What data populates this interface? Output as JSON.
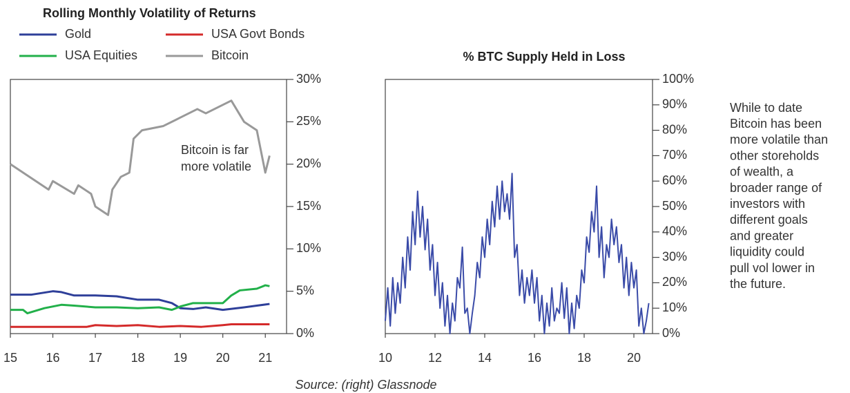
{
  "chart_data": [
    {
      "type": "line",
      "title": "Rolling Monthly Volatility of Returns",
      "annotation": [
        "Bitcoin is far",
        "more volatile"
      ],
      "xlim": [
        15,
        21.5
      ],
      "xticks": [
        15,
        16,
        17,
        18,
        19,
        20,
        21
      ],
      "ylim": [
        0,
        30
      ],
      "yticks": [
        {
          "value": 0,
          "label": "0%"
        },
        {
          "value": 5,
          "label": "5%"
        },
        {
          "value": 10,
          "label": "10%"
        },
        {
          "value": 15,
          "label": "15%"
        },
        {
          "value": 20,
          "label": "20%"
        },
        {
          "value": 25,
          "label": "25%"
        },
        {
          "value": 30,
          "label": "30%"
        }
      ],
      "series": [
        {
          "name": "Gold",
          "color": "#2e3f99",
          "x": [
            15,
            15.5,
            16,
            16.2,
            16.5,
            17,
            17.5,
            18,
            18.5,
            18.8,
            19,
            19.3,
            19.6,
            20,
            20.5,
            20.8,
            21.1
          ],
          "values": [
            4.6,
            4.6,
            5.0,
            4.9,
            4.5,
            4.5,
            4.4,
            4.0,
            4.0,
            3.6,
            3.0,
            2.9,
            3.1,
            2.8,
            3.1,
            3.3,
            3.5
          ]
        },
        {
          "name": "USA Govt Bonds",
          "color": "#d42a2a",
          "x": [
            15,
            16,
            16.8,
            17,
            17.5,
            18,
            18.5,
            19,
            19.5,
            20,
            20.2,
            21.1
          ],
          "values": [
            0.8,
            0.8,
            0.8,
            1.0,
            0.9,
            1.0,
            0.8,
            0.9,
            0.8,
            1.0,
            1.1,
            1.1
          ]
        },
        {
          "name": "USA Equities",
          "color": "#22b04a",
          "x": [
            15,
            15.3,
            15.4,
            15.8,
            16.2,
            16.5,
            17,
            17.5,
            18,
            18.5,
            18.8,
            19,
            19.3,
            19.6,
            20,
            20.2,
            20.4,
            20.8,
            21,
            21.1
          ],
          "values": [
            2.8,
            2.8,
            2.4,
            3.0,
            3.4,
            3.3,
            3.1,
            3.1,
            3.0,
            3.1,
            2.8,
            3.2,
            3.6,
            3.6,
            3.6,
            4.5,
            5.1,
            5.3,
            5.7,
            5.6
          ]
        },
        {
          "name": "Bitcoin",
          "color": "#999999",
          "x": [
            15,
            15.9,
            16.0,
            16.5,
            16.6,
            16.9,
            17.0,
            17.3,
            17.4,
            17.6,
            17.8,
            17.9,
            18.1,
            18.6,
            19.0,
            19.4,
            19.6,
            20.0,
            20.2,
            20.5,
            20.8,
            21.0,
            21.1
          ],
          "values": [
            20,
            17,
            18,
            16.5,
            17.5,
            16.5,
            15,
            14,
            17,
            18.5,
            19,
            23,
            24,
            24.5,
            25.5,
            26.5,
            26,
            27,
            27.5,
            25,
            24,
            19,
            21
          ]
        }
      ]
    },
    {
      "type": "line",
      "title": "% BTC Supply Held in Loss",
      "xlim": [
        10,
        20.75
      ],
      "xticks": [
        10,
        12,
        14,
        16,
        18,
        20
      ],
      "ylim": [
        0,
        100
      ],
      "yticks": [
        {
          "value": 0,
          "label": "0%"
        },
        {
          "value": 10,
          "label": "10%"
        },
        {
          "value": 20,
          "label": "20%"
        },
        {
          "value": 30,
          "label": "30%"
        },
        {
          "value": 40,
          "label": "40%"
        },
        {
          "value": 50,
          "label": "50%"
        },
        {
          "value": 60,
          "label": "60%"
        },
        {
          "value": 70,
          "label": "70%"
        },
        {
          "value": 80,
          "label": "80%"
        },
        {
          "value": 90,
          "label": "90%"
        },
        {
          "value": 100,
          "label": "100%"
        }
      ],
      "series": [
        {
          "color": "#3a4ba8",
          "x": [
            10.0,
            10.1,
            10.2,
            10.3,
            10.4,
            10.5,
            10.6,
            10.7,
            10.8,
            10.9,
            11.0,
            11.1,
            11.2,
            11.3,
            11.4,
            11.5,
            11.6,
            11.7,
            11.8,
            11.9,
            12.0,
            12.1,
            12.2,
            12.3,
            12.4,
            12.5,
            12.6,
            12.7,
            12.8,
            12.9,
            13.0,
            13.1,
            13.2,
            13.3,
            13.4,
            13.5,
            13.6,
            13.7,
            13.8,
            13.9,
            14.0,
            14.1,
            14.2,
            14.3,
            14.4,
            14.5,
            14.6,
            14.7,
            14.8,
            14.9,
            15.0,
            15.1,
            15.2,
            15.3,
            15.4,
            15.5,
            15.6,
            15.7,
            15.8,
            15.9,
            16.0,
            16.1,
            16.2,
            16.3,
            16.4,
            16.5,
            16.6,
            16.7,
            16.8,
            16.9,
            17.0,
            17.1,
            17.2,
            17.3,
            17.4,
            17.5,
            17.6,
            17.7,
            17.8,
            17.9,
            18.0,
            18.1,
            18.2,
            18.3,
            18.4,
            18.5,
            18.6,
            18.7,
            18.8,
            18.9,
            19.0,
            19.1,
            19.2,
            19.3,
            19.4,
            19.5,
            19.6,
            19.7,
            19.8,
            19.9,
            20.0,
            20.1,
            20.2,
            20.3,
            20.4,
            20.5,
            20.6
          ],
          "values": [
            5,
            18,
            3,
            22,
            8,
            20,
            12,
            30,
            18,
            38,
            25,
            48,
            35,
            56,
            38,
            50,
            33,
            45,
            25,
            35,
            15,
            28,
            10,
            20,
            3,
            15,
            0,
            12,
            5,
            22,
            18,
            34,
            8,
            10,
            0,
            8,
            15,
            28,
            22,
            38,
            30,
            45,
            35,
            52,
            42,
            58,
            45,
            60,
            48,
            55,
            45,
            63,
            30,
            35,
            15,
            25,
            12,
            22,
            15,
            25,
            12,
            22,
            5,
            15,
            0,
            12,
            3,
            18,
            5,
            10,
            8,
            20,
            6,
            18,
            0,
            12,
            2,
            15,
            10,
            25,
            20,
            38,
            32,
            48,
            40,
            58,
            30,
            42,
            22,
            35,
            30,
            45,
            35,
            42,
            28,
            35,
            18,
            30,
            15,
            28,
            18,
            25,
            3,
            10,
            0,
            5,
            12
          ]
        }
      ]
    }
  ],
  "note": [
    "While to date",
    "Bitcoin has been",
    "more volatile than",
    "other storeholds",
    "of wealth, a",
    "broader range of",
    "investors with",
    "different goals",
    "and greater",
    "liquidity could",
    "pull vol lower in",
    " the future."
  ],
  "source": "Source: (right) Glassnode"
}
